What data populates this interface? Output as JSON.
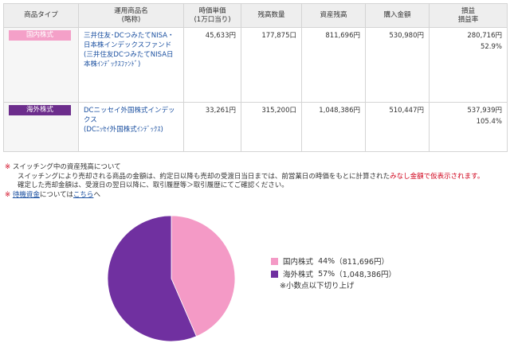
{
  "table": {
    "headers": [
      {
        "line1": "商品タイプ",
        "line2": ""
      },
      {
        "line1": "運用商品名",
        "line2": "(略称)"
      },
      {
        "line1": "時価単価",
        "line2": "(1万口当り)"
      },
      {
        "line1": "残高数量",
        "line2": ""
      },
      {
        "line1": "資産残高",
        "line2": ""
      },
      {
        "line1": "購入金額",
        "line2": ""
      },
      {
        "line1": "損益",
        "line2": "損益率"
      }
    ],
    "rows": [
      {
        "type": "国内株式",
        "name_line1": "三井住友･DCつみたてNISA・日本株インデックスファンド",
        "name_line2": "(三井住友DCつみたてNISA日本株ｲﾝﾃﾞｯｸｽﾌｧﾝﾄﾞ)",
        "unit_price": "45,633円",
        "quantity": "177,875口",
        "balance": "811,696円",
        "purchase": "530,980円",
        "profit": "280,716円",
        "profit_rate": "52.9%"
      },
      {
        "type": "海外株式",
        "name_line1": "DCニッセイ外国株式インデックス",
        "name_line2": "(DCﾆｯｾｲ外国株式ｲﾝﾃﾞｯｸｽ)",
        "unit_price": "33,261円",
        "quantity": "315,200口",
        "balance": "1,048,386円",
        "purchase": "510,447円",
        "profit": "537,939円",
        "profit_rate": "105.4%"
      }
    ]
  },
  "notes": {
    "mark": "※",
    "line1": "スイッチング中の資産残高について",
    "line2_a": "スイッチングにより売却される商品の金額は、約定日以降も売却の受渡日当日までは、前営業日の時価をもとに計算された",
    "line2_red": "みなし金額で仮表示されます。",
    "line3": "確定した売却金額は、受渡日の翌日以降に、取引履歴等＞取引履歴にてご確認ください。",
    "line4_link1": "待機資金",
    "line4_mid": "については",
    "line4_link2": "こちら",
    "line4_end": "へ"
  },
  "chart_data": {
    "type": "pie",
    "title": "",
    "slices": [
      {
        "label": "国内株式",
        "percent": 44,
        "amount": "811,696円",
        "color": "#f49ac6"
      },
      {
        "label": "海外株式",
        "percent": 57,
        "amount": "1,048,386円",
        "color": "#7030a0"
      }
    ],
    "legend_position": "right",
    "note": "※小数点以下切り上げ"
  }
}
